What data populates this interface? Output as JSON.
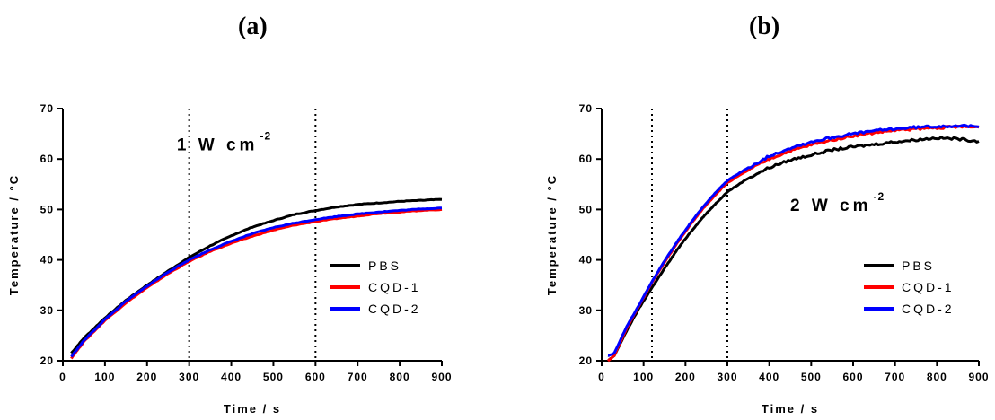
{
  "panel_labels": [
    "(a)",
    "(b)"
  ],
  "chart_data": [
    {
      "type": "line",
      "panel": "(a)",
      "xlabel": "Time / s",
      "ylabel": "Temperature / °C",
      "xlim": [
        0,
        900
      ],
      "ylim": [
        20,
        70
      ],
      "xticks": [
        0,
        100,
        200,
        300,
        400,
        500,
        600,
        700,
        800,
        900
      ],
      "yticks": [
        20,
        30,
        40,
        50,
        60,
        70
      ],
      "vlines": [
        300,
        600
      ],
      "annotation": {
        "main": "1 W cm",
        "sup": "-2",
        "x": 420,
        "y": 63
      },
      "legend_position": "right",
      "x": [
        20,
        50,
        100,
        150,
        200,
        250,
        300,
        350,
        400,
        450,
        500,
        550,
        600,
        650,
        700,
        750,
        800,
        850,
        900
      ],
      "series": [
        {
          "name": "PBS",
          "color": "#000000",
          "values": [
            21.5,
            24.5,
            28.5,
            32.0,
            35.0,
            37.8,
            40.5,
            42.8,
            44.8,
            46.5,
            47.8,
            49.0,
            49.8,
            50.5,
            51.0,
            51.3,
            51.6,
            51.8,
            52.0
          ]
        },
        {
          "name": "CQD-1",
          "color": "#ff0000",
          "values": [
            20.5,
            23.8,
            28.0,
            31.5,
            34.5,
            37.3,
            39.7,
            41.7,
            43.3,
            44.7,
            45.9,
            46.9,
            47.6,
            48.2,
            48.7,
            49.2,
            49.5,
            49.8,
            50.0
          ]
        },
        {
          "name": "CQD-2",
          "color": "#0000ff",
          "values": [
            20.8,
            24.0,
            28.2,
            31.8,
            34.8,
            37.6,
            40.0,
            42.0,
            43.7,
            45.2,
            46.4,
            47.3,
            48.0,
            48.6,
            49.1,
            49.5,
            49.8,
            50.1,
            50.3
          ]
        }
      ]
    },
    {
      "type": "line",
      "panel": "(b)",
      "xlabel": "Time / s",
      "ylabel": "Temperature / °C",
      "xlim": [
        0,
        900
      ],
      "ylim": [
        20,
        70
      ],
      "xticks": [
        0,
        100,
        200,
        300,
        400,
        500,
        600,
        700,
        800,
        900
      ],
      "yticks": [
        20,
        30,
        40,
        50,
        60,
        70
      ],
      "vlines": [
        120,
        300
      ],
      "annotation": {
        "main": "2 W cm",
        "sup": "-2",
        "x": 600,
        "y": 51
      },
      "legend_position": "right",
      "x": [
        15,
        30,
        60,
        90,
        120,
        150,
        180,
        210,
        240,
        270,
        300,
        350,
        400,
        450,
        500,
        550,
        600,
        650,
        700,
        750,
        800,
        850,
        900
      ],
      "series": [
        {
          "name": "PBS",
          "color": "#000000",
          "values": [
            20.0,
            21.0,
            26.0,
            30.5,
            34.5,
            38.3,
            42.0,
            45.3,
            48.3,
            51.0,
            53.5,
            56.2,
            58.3,
            59.8,
            60.8,
            61.8,
            62.4,
            62.9,
            63.4,
            63.8,
            64.2,
            64.0,
            63.5
          ]
        },
        {
          "name": "CQD-1",
          "color": "#ff0000",
          "values": [
            20.0,
            21.0,
            26.5,
            31.0,
            35.5,
            39.5,
            43.3,
            46.8,
            50.0,
            52.8,
            55.3,
            57.8,
            60.0,
            61.6,
            62.8,
            63.8,
            64.6,
            65.2,
            65.7,
            66.0,
            66.2,
            66.4,
            66.3
          ]
        },
        {
          "name": "CQD-2",
          "color": "#0000ff",
          "values": [
            21.0,
            21.5,
            26.8,
            31.2,
            35.7,
            39.8,
            43.6,
            47.1,
            50.3,
            53.2,
            55.7,
            58.3,
            60.6,
            62.2,
            63.4,
            64.3,
            65.0,
            65.6,
            66.0,
            66.3,
            66.5,
            66.6,
            66.4
          ]
        }
      ]
    }
  ]
}
